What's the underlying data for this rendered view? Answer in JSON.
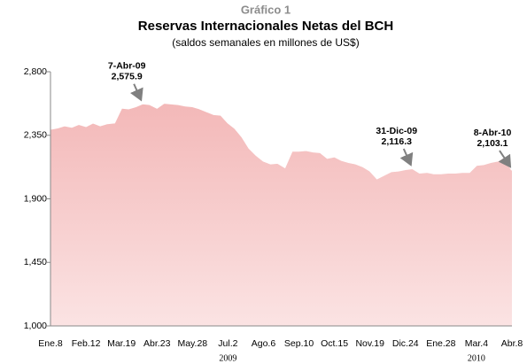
{
  "chart_data": {
    "type": "area",
    "title": "Gráfico 1",
    "subtitle": "Reservas Internacionales Netas del BCH",
    "note": "(saldos semanales en millones de US$)",
    "categories": [
      "Ene.8",
      null,
      null,
      null,
      null,
      "Feb.12",
      null,
      null,
      null,
      null,
      "Mar.19",
      null,
      null,
      null,
      null,
      "Abr.23",
      null,
      null,
      null,
      null,
      "May.28",
      null,
      null,
      null,
      null,
      "Jul.2",
      null,
      null,
      null,
      null,
      "Ago.6",
      null,
      null,
      null,
      null,
      "Sep.10",
      null,
      null,
      null,
      null,
      "Oct.15",
      null,
      null,
      null,
      null,
      "Nov.19",
      null,
      null,
      null,
      null,
      "Dic.24",
      null,
      null,
      null,
      null,
      "Ene.28",
      null,
      null,
      null,
      null,
      "Mar.4",
      null,
      null,
      null,
      null,
      "Abr.8"
    ],
    "year_labels": [
      null,
      null,
      null,
      null,
      null,
      null,
      null,
      null,
      null,
      null,
      null,
      null,
      null,
      null,
      null,
      null,
      null,
      null,
      null,
      null,
      null,
      null,
      null,
      null,
      null,
      "2009",
      null,
      null,
      null,
      null,
      null,
      null,
      null,
      null,
      null,
      null,
      null,
      null,
      null,
      null,
      null,
      null,
      null,
      null,
      null,
      null,
      null,
      null,
      null,
      null,
      null,
      null,
      null,
      null,
      null,
      null,
      null,
      null,
      null,
      null,
      "2010",
      null,
      null,
      null,
      null,
      null
    ],
    "values": [
      2395,
      2405,
      2420,
      2410,
      2430,
      2415,
      2440,
      2420,
      2435,
      2440,
      2545,
      2540,
      2555,
      2575.9,
      2570,
      2545,
      2580,
      2575,
      2570,
      2560,
      2555,
      2540,
      2520,
      2500,
      2495,
      2440,
      2400,
      2340,
      2260,
      2210,
      2170,
      2150,
      2155,
      2125,
      2240,
      2240,
      2245,
      2235,
      2230,
      2190,
      2200,
      2175,
      2160,
      2150,
      2130,
      2100,
      2045,
      2070,
      2095,
      2100,
      2110,
      2116.3,
      2085,
      2090,
      2080,
      2080,
      2085,
      2085,
      2090,
      2090,
      2140,
      2145,
      2160,
      2170,
      2200,
      2103.1
    ],
    "value_labels": [
      null,
      null,
      null,
      null,
      null,
      null,
      null,
      null,
      null,
      null,
      null,
      null,
      null,
      "2,575.9",
      null,
      null,
      null,
      null,
      null,
      null,
      null,
      null,
      null,
      null,
      null,
      null,
      null,
      null,
      null,
      null,
      null,
      null,
      null,
      null,
      null,
      null,
      null,
      null,
      null,
      null,
      null,
      null,
      null,
      null,
      null,
      null,
      null,
      null,
      null,
      null,
      null,
      "2,116.3",
      null,
      null,
      null,
      null,
      null,
      null,
      null,
      null,
      null,
      null,
      null,
      null,
      null,
      "2,103.1"
    ],
    "point_labels": [
      null,
      null,
      null,
      null,
      null,
      null,
      null,
      null,
      null,
      null,
      null,
      null,
      null,
      "7-Abr-09",
      null,
      null,
      null,
      null,
      null,
      null,
      null,
      null,
      null,
      null,
      null,
      null,
      null,
      null,
      null,
      null,
      null,
      null,
      null,
      null,
      null,
      null,
      null,
      null,
      null,
      null,
      null,
      null,
      null,
      null,
      null,
      null,
      null,
      null,
      null,
      null,
      null,
      "31-Dic-09",
      null,
      null,
      null,
      null,
      null,
      null,
      null,
      null,
      null,
      null,
      null,
      null,
      null,
      "8-Abr-10"
    ],
    "color": "#f6c9c9",
    "ylim": [
      1000,
      2800
    ],
    "yticks": [
      {
        "value": 1000,
        "label": "1,000"
      },
      {
        "value": 1450,
        "label": "1,450"
      },
      {
        "value": 1900,
        "label": "1,900"
      },
      {
        "value": 2350,
        "label": "2,350"
      },
      {
        "value": 2800,
        "label": "2,800"
      }
    ]
  }
}
